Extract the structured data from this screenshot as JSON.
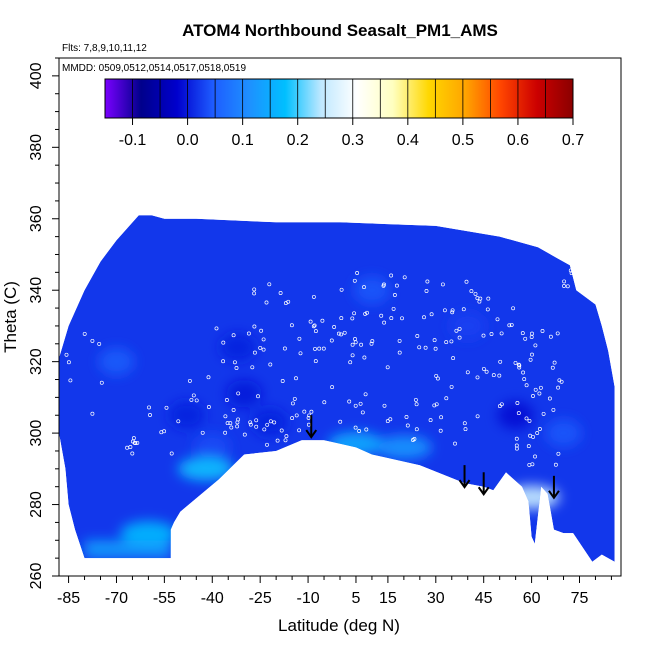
{
  "chart_data": {
    "type": "heatmap",
    "title": "ATOM4 Northbound Seasalt_PM1_AMS",
    "flights_note": "Flts: 7,8,9,10,11,12",
    "dates_note": "MMDD: 0509,0512,0514,0517,0518,0519",
    "xlabel": "Latitude (deg N)",
    "ylabel": "Theta (C)",
    "xlim": [
      -88,
      88
    ],
    "ylim": [
      260,
      405
    ],
    "x_ticks": [
      -85,
      -70,
      -55,
      -40,
      -25,
      -10,
      5,
      15,
      30,
      45,
      60,
      75
    ],
    "y_ticks": [
      260,
      280,
      300,
      320,
      340,
      360,
      380,
      400
    ],
    "colorbar": {
      "min": -0.15,
      "max": 0.7,
      "ticks": [
        -0.1,
        0.0,
        0.1,
        0.2,
        0.3,
        0.4,
        0.5,
        0.6,
        0.7
      ],
      "colors": [
        "#7a00ff",
        "#00008b",
        "#0000cd",
        "#1e5cff",
        "#1e90ff",
        "#00bfff",
        "#bfe8ff",
        "#ffffff",
        "#ffffc0",
        "#ffd700",
        "#ffa500",
        "#ff4500",
        "#cc0000",
        "#8b0000"
      ]
    },
    "field_value_typical": 0.02,
    "enhanced_regions": [
      {
        "lat": -42,
        "theta": 290,
        "value": 0.18
      },
      {
        "lat": -60,
        "theta": 272,
        "value": 0.17
      },
      {
        "lat": 5,
        "theta": 297,
        "value": 0.15
      },
      {
        "lat": 20,
        "theta": 296,
        "value": 0.12
      },
      {
        "lat": 60,
        "theta": 282,
        "value": 0.25
      }
    ],
    "arrows": [
      {
        "lat": -9,
        "theta": 300
      },
      {
        "lat": 39,
        "theta": 286
      },
      {
        "lat": 45,
        "theta": 284
      },
      {
        "lat": 67,
        "theta": 283
      }
    ]
  }
}
